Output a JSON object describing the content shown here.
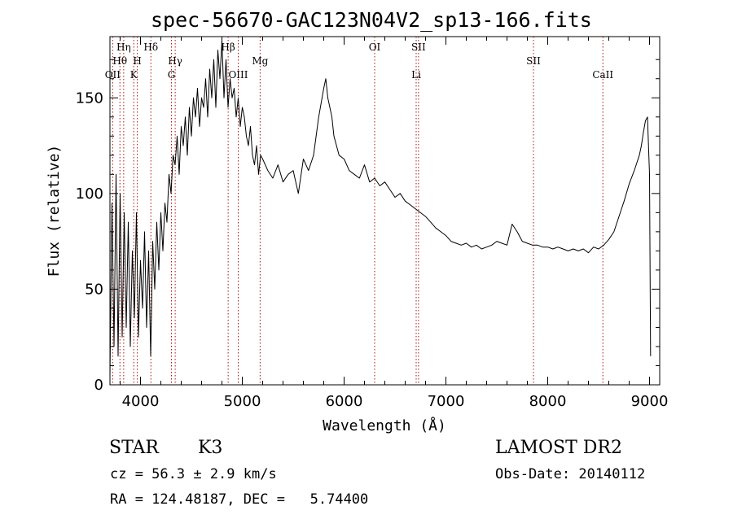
{
  "chart_data": {
    "type": "line",
    "title": "spec-56670-GAC123N04V2_sp13-166.fits",
    "xlabel": "Wavelength (Å)",
    "ylabel": "Flux (relative)",
    "xlim": [
      3700,
      9100
    ],
    "ylim": [
      0,
      182
    ],
    "xticks": [
      4000,
      5000,
      6000,
      7000,
      8000,
      9000
    ],
    "yticks": [
      0,
      50,
      100,
      150
    ],
    "grid": false,
    "series": [
      {
        "color": "#000000",
        "x": [
          3700,
          3720,
          3740,
          3760,
          3780,
          3800,
          3820,
          3840,
          3860,
          3880,
          3900,
          3920,
          3940,
          3960,
          3980,
          4000,
          4020,
          4040,
          4060,
          4080,
          4100,
          4120,
          4140,
          4160,
          4180,
          4200,
          4220,
          4240,
          4260,
          4280,
          4300,
          4320,
          4340,
          4360,
          4380,
          4400,
          4420,
          4440,
          4460,
          4480,
          4500,
          4520,
          4540,
          4560,
          4580,
          4600,
          4620,
          4640,
          4660,
          4680,
          4700,
          4720,
          4740,
          4760,
          4780,
          4800,
          4820,
          4840,
          4860,
          4880,
          4900,
          4920,
          4940,
          4960,
          4980,
          5000,
          5020,
          5040,
          5060,
          5080,
          5100,
          5120,
          5140,
          5160,
          5180,
          5200,
          5250,
          5300,
          5350,
          5400,
          5450,
          5500,
          5550,
          5600,
          5650,
          5700,
          5750,
          5800,
          5820,
          5840,
          5860,
          5880,
          5900,
          5950,
          6000,
          6050,
          6100,
          6150,
          6200,
          6250,
          6300,
          6350,
          6400,
          6450,
          6500,
          6550,
          6600,
          6650,
          6700,
          6750,
          6800,
          6850,
          6900,
          6950,
          7000,
          7050,
          7100,
          7150,
          7200,
          7250,
          7300,
          7350,
          7400,
          7450,
          7500,
          7550,
          7600,
          7650,
          7700,
          7750,
          7800,
          7850,
          7900,
          7950,
          8000,
          8050,
          8100,
          8150,
          8200,
          8250,
          8300,
          8350,
          8400,
          8450,
          8500,
          8550,
          8600,
          8650,
          8700,
          8750,
          8800,
          8850,
          8900,
          8920,
          8940,
          8960,
          8980,
          9000,
          9010
        ],
        "y": [
          5,
          95,
          20,
          110,
          15,
          100,
          25,
          90,
          30,
          85,
          20,
          70,
          35,
          90,
          25,
          65,
          40,
          80,
          30,
          70,
          15,
          75,
          50,
          85,
          60,
          90,
          70,
          95,
          85,
          110,
          100,
          120,
          115,
          130,
          110,
          135,
          125,
          140,
          120,
          145,
          130,
          150,
          140,
          155,
          135,
          150,
          145,
          160,
          140,
          165,
          150,
          170,
          145,
          175,
          160,
          180,
          150,
          170,
          145,
          160,
          150,
          155,
          140,
          150,
          135,
          145,
          140,
          130,
          125,
          135,
          120,
          115,
          125,
          110,
          120,
          118,
          112,
          108,
          115,
          106,
          110,
          112,
          100,
          118,
          112,
          120,
          140,
          155,
          160,
          150,
          145,
          140,
          130,
          120,
          118,
          112,
          110,
          108,
          115,
          106,
          108,
          104,
          106,
          102,
          98,
          100,
          96,
          94,
          92,
          90,
          88,
          85,
          82,
          80,
          78,
          75,
          74,
          73,
          74,
          72,
          73,
          71,
          72,
          73,
          75,
          74,
          73,
          84,
          80,
          75,
          74,
          73,
          73,
          72,
          72,
          71,
          72,
          71,
          70,
          71,
          70,
          71,
          69,
          72,
          71,
          73,
          76,
          80,
          88,
          96,
          105,
          112,
          120,
          125,
          132,
          138,
          140,
          110,
          15
        ]
      }
    ],
    "line_markers": [
      {
        "label": "OII",
        "x": 3727,
        "row": 3
      },
      {
        "label": "Hθ",
        "x": 3798,
        "row": 2
      },
      {
        "label": "Hη",
        "x": 3835,
        "row": 1
      },
      {
        "label": "K",
        "x": 3934,
        "row": 3
      },
      {
        "label": "H",
        "x": 3969,
        "row": 2
      },
      {
        "label": "Hδ",
        "x": 4102,
        "row": 1
      },
      {
        "label": "G",
        "x": 4304,
        "row": 3
      },
      {
        "label": "Hγ",
        "x": 4341,
        "row": 2
      },
      {
        "label": "Hβ",
        "x": 4861,
        "row": 1
      },
      {
        "label": "OIII",
        "x": 4960,
        "row": 3
      },
      {
        "label": "Mg",
        "x": 5175,
        "row": 2
      },
      {
        "label": "OI",
        "x": 6300,
        "row": 1
      },
      {
        "label": "Li",
        "x": 6708,
        "row": 3
      },
      {
        "label": "SII",
        "x": 6731,
        "row": 1
      },
      {
        "label": "SII",
        "x": 7860,
        "row": 2
      },
      {
        "label": "CaII",
        "x": 8542,
        "row": 3
      }
    ]
  },
  "info": {
    "object_class": "STAR",
    "subclass": "K3",
    "cz_line": "cz = 56.3 ± 2.9 km/s",
    "radec_line": "RA = 124.48187, DEC =   5.74400",
    "survey": "LAMOST DR2",
    "obs_date_line": "Obs-Date: 20140112"
  }
}
